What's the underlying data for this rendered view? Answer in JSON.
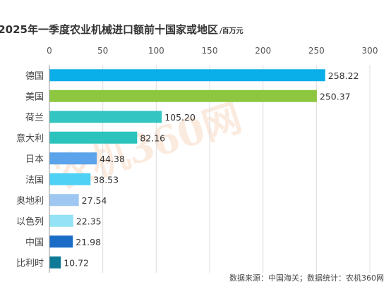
{
  "chart_data": {
    "type": "bar",
    "orientation": "horizontal",
    "title": "2025年一季度农业机械进口额前十国家或地区",
    "unit": "/百万元",
    "categories": [
      "德国",
      "美国",
      "荷兰",
      "意大利",
      "日本",
      "法国",
      "奥地利",
      "以色列",
      "中国",
      "比利时"
    ],
    "values": [
      258.22,
      250.37,
      105.2,
      82.16,
      44.38,
      38.53,
      27.54,
      22.35,
      21.98,
      10.72
    ],
    "value_labels": [
      "258.22",
      "250.37",
      "105.20",
      "82.16",
      "44.38",
      "38.53",
      "27.54",
      "22.35",
      "21.98",
      "10.72"
    ],
    "colors": [
      "#0aaee8",
      "#8dc63f",
      "#33c5c1",
      "#2cc3bd",
      "#5ba3ea",
      "#4fd0f5",
      "#9ec7f2",
      "#93e2f5",
      "#1a6cc7",
      "#0f7a96"
    ],
    "xlim": [
      0,
      300
    ],
    "xticks": [
      "0",
      "50",
      "100",
      "150",
      "200",
      "250",
      "300"
    ],
    "xtick_values": [
      0,
      50,
      100,
      150,
      200,
      250,
      300
    ],
    "xaxis_position": "top",
    "grid": true,
    "legend": "none",
    "source": "数据来源：中国海关；数据统计：农机360网",
    "watermark": "农机360网"
  }
}
